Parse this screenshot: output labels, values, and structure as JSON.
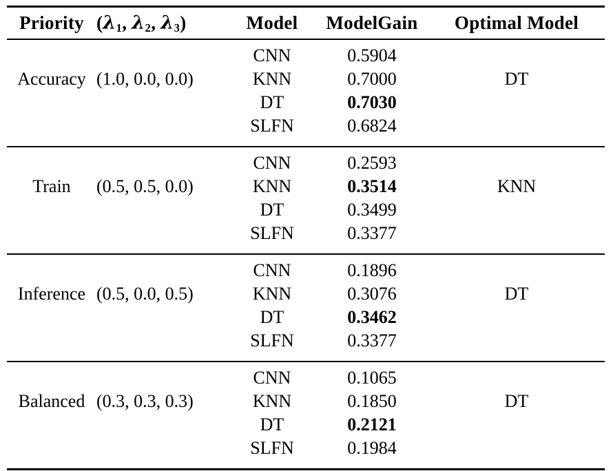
{
  "page": {
    "background_color": "#ffffff",
    "text_color": "#000000",
    "rule_color": "#000000"
  },
  "table": {
    "columns": [
      {
        "key": "priority",
        "label": "Priority"
      },
      {
        "key": "lambdas",
        "label_parts": {
          "open": "(",
          "symbol": "λ",
          "subscripts": [
            "1",
            "2",
            "3"
          ],
          "separator": ", ",
          "close": ")"
        }
      },
      {
        "key": "model",
        "label": "Model"
      },
      {
        "key": "modelgain",
        "label": "ModelGain"
      },
      {
        "key": "optimal",
        "label": "Optimal Model"
      }
    ],
    "groups": [
      {
        "priority": "Accuracy",
        "lambdas": "(1.0, 0.0, 0.0)",
        "optimal": "DT",
        "rows": [
          {
            "model": "CNN",
            "gain": "0.5904",
            "best": false
          },
          {
            "model": "KNN",
            "gain": "0.7000",
            "best": false
          },
          {
            "model": "DT",
            "gain": "0.7030",
            "best": true
          },
          {
            "model": "SLFN",
            "gain": "0.6824",
            "best": false
          }
        ]
      },
      {
        "priority": "Train",
        "lambdas": "(0.5, 0.5, 0.0)",
        "optimal": "KNN",
        "rows": [
          {
            "model": "CNN",
            "gain": "0.2593",
            "best": false
          },
          {
            "model": "KNN",
            "gain": "0.3514",
            "best": true
          },
          {
            "model": "DT",
            "gain": "0.3499",
            "best": false
          },
          {
            "model": "SLFN",
            "gain": "0.3377",
            "best": false
          }
        ]
      },
      {
        "priority": "Inference",
        "lambdas": "(0.5, 0.0, 0.5)",
        "optimal": "DT",
        "rows": [
          {
            "model": "CNN",
            "gain": "0.1896",
            "best": false
          },
          {
            "model": "KNN",
            "gain": "0.3076",
            "best": false
          },
          {
            "model": "DT",
            "gain": "0.3462",
            "best": true
          },
          {
            "model": "SLFN",
            "gain": "0.3377",
            "best": false
          }
        ]
      },
      {
        "priority": "Balanced",
        "lambdas": "(0.3, 0.3, 0.3)",
        "optimal": "DT",
        "rows": [
          {
            "model": "CNN",
            "gain": "0.1065",
            "best": false
          },
          {
            "model": "KNN",
            "gain": "0.1850",
            "best": false
          },
          {
            "model": "DT",
            "gain": "0.2121",
            "best": true
          },
          {
            "model": "SLFN",
            "gain": "0.1984",
            "best": false
          }
        ]
      }
    ]
  }
}
